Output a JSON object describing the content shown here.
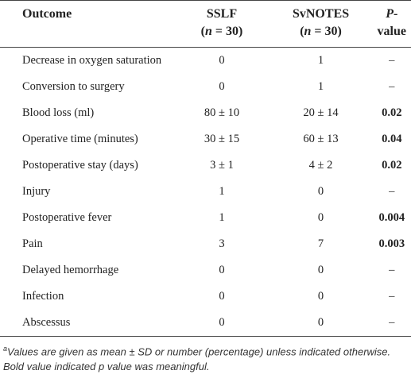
{
  "table": {
    "header": {
      "outcome": "Outcome",
      "sslf": {
        "name": "SSLF",
        "open": "(",
        "n": "n",
        "rest": " = 30)"
      },
      "svnotes": {
        "name": "SvNOTES",
        "open": "(",
        "n": "n",
        "rest": " = 30)"
      },
      "p": {
        "italic": "P",
        "rest": "-value"
      }
    },
    "rows": [
      {
        "cells": [
          "Decrease in oxygen saturation",
          "0",
          "1",
          "–"
        ],
        "p_bold": false
      },
      {
        "cells": [
          "Conversion to surgery",
          "0",
          "1",
          "–"
        ],
        "p_bold": false
      },
      {
        "cells": [
          "Blood loss (ml)",
          "80 ± 10",
          "20 ± 14",
          "0.02"
        ],
        "p_bold": true
      },
      {
        "cells": [
          "Operative time (minutes)",
          "30 ± 15",
          "60 ± 13",
          "0.04"
        ],
        "p_bold": true
      },
      {
        "cells": [
          "Postoperative stay (days)",
          "3 ± 1",
          "4 ± 2",
          "0.02"
        ],
        "p_bold": true
      },
      {
        "cells": [
          "Injury",
          "1",
          "0",
          "–"
        ],
        "p_bold": false
      },
      {
        "cells": [
          "Postoperative fever",
          "1",
          "0",
          "0.004"
        ],
        "p_bold": true
      },
      {
        "cells": [
          "Pain",
          "3",
          "7",
          "0.003"
        ],
        "p_bold": true
      },
      {
        "cells": [
          "Delayed hemorrhage",
          "0",
          "0",
          "–"
        ],
        "p_bold": false
      },
      {
        "cells": [
          "Infection",
          "0",
          "0",
          "–"
        ],
        "p_bold": false
      },
      {
        "cells": [
          "Abscessus",
          "0",
          "0",
          "–"
        ],
        "p_bold": false
      }
    ],
    "footnote": {
      "mark": "a",
      "text": "Values are given as mean ± SD or number (percentage) unless indicated otherwise.",
      "note": "Bold value indicated p value was meaningful."
    }
  }
}
